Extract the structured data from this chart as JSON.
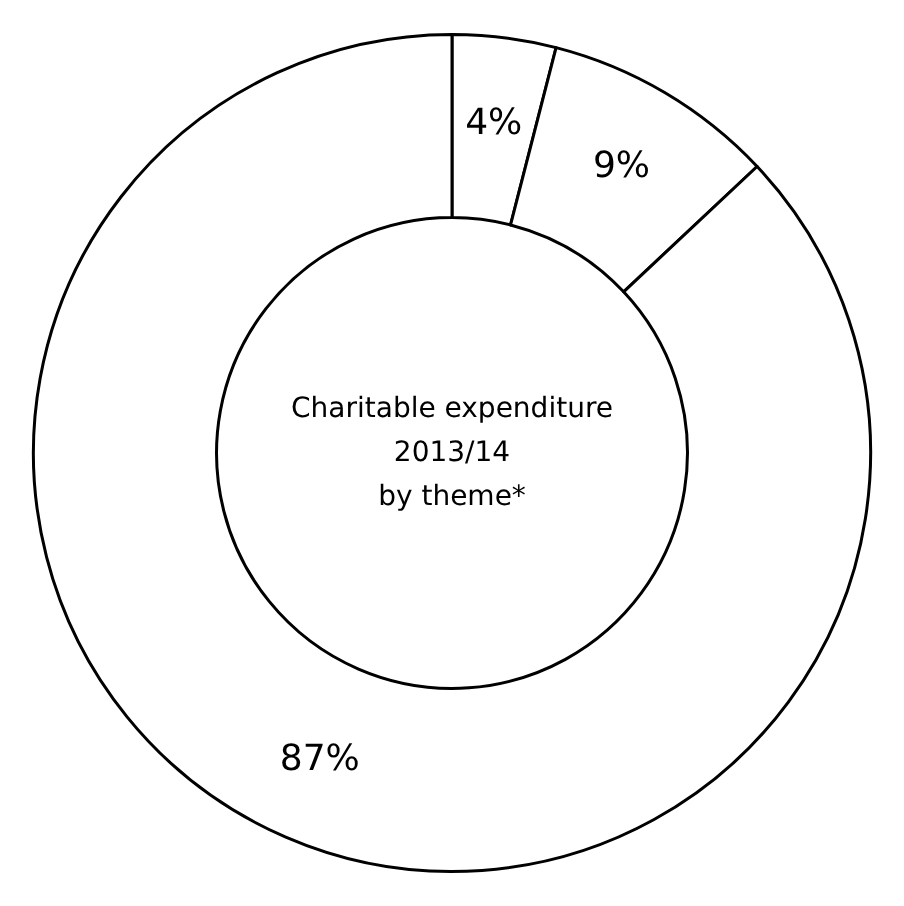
{
  "chart_data": {
    "type": "donut",
    "title": "Charitable expenditure\n2013/14\nby theme*",
    "categories": [
      null,
      null,
      null
    ],
    "values": [
      4,
      9,
      87
    ],
    "colors": [
      "#ffffff",
      "#ffffff",
      "#ffffff"
    ],
    "value_labels": [
      "4%",
      "9%",
      "87%"
    ]
  }
}
